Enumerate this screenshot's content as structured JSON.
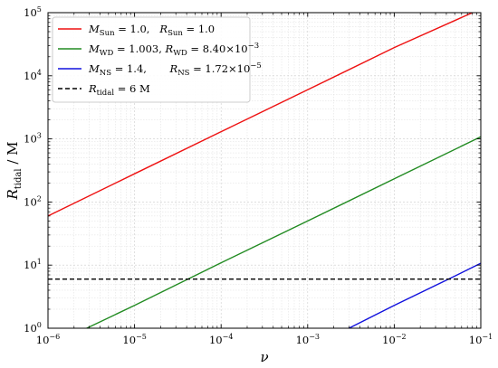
{
  "chart_data": {
    "type": "line",
    "title": "",
    "xlabel": "ν",
    "ylabel": "R_tidal / M",
    "xscale": "log",
    "yscale": "log",
    "xlim": [
      1e-06,
      0.1
    ],
    "ylim": [
      1,
      100000
    ],
    "grid": true,
    "legend_position": "top-left",
    "x_ticks": [
      {
        "value": 1e-06,
        "base": "10",
        "exp": "−6"
      },
      {
        "value": 1e-05,
        "base": "10",
        "exp": "−5"
      },
      {
        "value": 0.0001,
        "base": "10",
        "exp": "−4"
      },
      {
        "value": 0.001,
        "base": "10",
        "exp": "−3"
      },
      {
        "value": 0.01,
        "base": "10",
        "exp": "−2"
      },
      {
        "value": 0.1,
        "base": "10",
        "exp": "−1"
      }
    ],
    "y_ticks": [
      {
        "value": 1,
        "base": "10",
        "exp": "0"
      },
      {
        "value": 10,
        "base": "10",
        "exp": "1"
      },
      {
        "value": 100,
        "base": "10",
        "exp": "2"
      },
      {
        "value": 1000,
        "base": "10",
        "exp": "3"
      },
      {
        "value": 10000,
        "base": "10",
        "exp": "4"
      },
      {
        "value": 100000,
        "base": "10",
        "exp": "5"
      }
    ],
    "series": [
      {
        "name": "M_Sun = 1.0, R_Sun = 1.0",
        "color": "#ee1111",
        "dash": "solid",
        "x": [
          1e-06,
          1e-05,
          0.0001,
          0.001,
          0.01,
          0.08
        ],
        "y": [
          60,
          280,
          1300,
          6000,
          28000,
          100000
        ]
      },
      {
        "name": "M_WD = 1.003, R_WD = 8.40×10^−3",
        "color": "#228b22",
        "dash": "solid",
        "x": [
          2.8e-06,
          1e-05,
          0.0001,
          0.001,
          0.01,
          0.1
        ],
        "y": [
          1,
          2.3,
          10.9,
          50,
          233,
          1080
        ]
      },
      {
        "name": "M_NS = 1.4, R_NS = 1.72×10^−5",
        "color": "#1111dd",
        "dash": "solid",
        "x": [
          0.003,
          0.01,
          0.05,
          0.1
        ],
        "y": [
          1,
          2.3,
          6.7,
          10.7
        ]
      },
      {
        "name": "R_tidal = 6 M",
        "color": "#000000",
        "dash": "dashed",
        "x": [
          1e-06,
          0.1
        ],
        "y": [
          6,
          6
        ]
      }
    ]
  },
  "legend": [
    {
      "color": "#ee1111",
      "dash": "solid",
      "parts": [
        {
          "t": "M",
          "it": true
        },
        {
          "t": "Sun",
          "sub": true
        },
        {
          "t": " = 1.0,   "
        },
        {
          "t": "R",
          "it": true
        },
        {
          "t": "Sun",
          "sub": true
        },
        {
          "t": " = 1.0"
        }
      ]
    },
    {
      "color": "#228b22",
      "dash": "solid",
      "parts": [
        {
          "t": "M",
          "it": true
        },
        {
          "t": "WD",
          "sub": true
        },
        {
          "t": " = 1.003, "
        },
        {
          "t": "R",
          "it": true
        },
        {
          "t": "WD",
          "sub": true
        },
        {
          "t": " = 8.40×10"
        },
        {
          "t": "−3",
          "sup": true
        }
      ]
    },
    {
      "color": "#1111dd",
      "dash": "solid",
      "parts": [
        {
          "t": "M",
          "it": true
        },
        {
          "t": "NS",
          "sub": true
        },
        {
          "t": " = 1.4,       "
        },
        {
          "t": "R",
          "it": true
        },
        {
          "t": "NS",
          "sub": true
        },
        {
          "t": " = 1.72×10"
        },
        {
          "t": "−5",
          "sup": true
        }
      ]
    },
    {
      "color": "#000000",
      "dash": "dashed",
      "parts": [
        {
          "t": "R",
          "it": true
        },
        {
          "t": "tidal",
          "sub": true
        },
        {
          "t": " = 6 M"
        }
      ]
    }
  ]
}
